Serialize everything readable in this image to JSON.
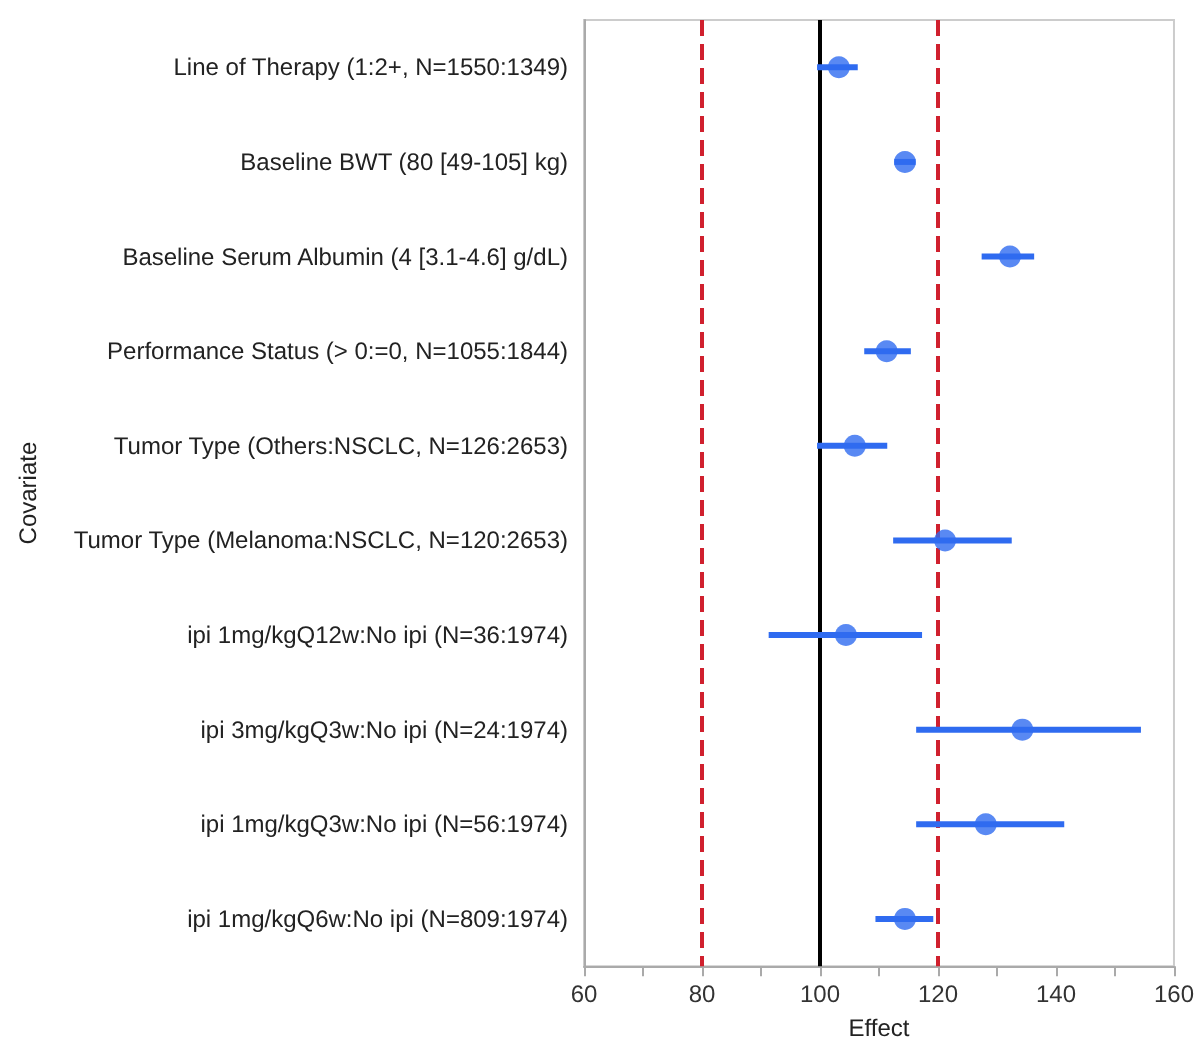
{
  "chart_data": {
    "type": "scatter",
    "orientation": "horizontal",
    "xlabel": "Effect",
    "ylabel": "Covariate",
    "categories": [
      "Line of Therapy (1:2+, N=1550:1349)",
      "Baseline BWT (80 [49-105] kg)",
      "Baseline Serum Albumin (4 [3.1-4.6] g/dL)",
      "Performance Status (> 0:=0, N=1055:1844)",
      "Tumor Type (Others:NSCLC, N=126:2653)",
      "Tumor Type (Melanoma:NSCLC, N=120:2653)",
      "ipi 1mg/kgQ12w:No ipi (N=36:1974)",
      "ipi 3mg/kgQ3w:No ipi (N=24:1974)",
      "ipi 1mg/kgQ3w:No ipi (N=56:1974)",
      "ipi 1mg/kgQ6w:No ipi (N=809:1974)"
    ],
    "values": [
      103.2,
      114.4,
      132.2,
      111.3,
      105.9,
      121.2,
      104.4,
      134.3,
      128.1,
      114.4
    ],
    "errors": [
      [
        99.5,
        106.4
      ],
      [
        112.6,
        116.2
      ],
      [
        127.4,
        136.3
      ],
      [
        107.5,
        115.4
      ],
      [
        99.5,
        111.4
      ],
      [
        112.4,
        132.5
      ],
      [
        91.3,
        117.3
      ],
      [
        116.3,
        154.4
      ],
      [
        116.3,
        141.4
      ],
      [
        109.4,
        119.2
      ]
    ],
    "color": "#2f6bf0",
    "marker": "circle",
    "grid": false,
    "xlim": [
      60,
      160
    ],
    "xticks": [
      60,
      {
        "value": 70,
        "label": null
      },
      80,
      {
        "value": 90,
        "label": null
      },
      100,
      {
        "value": 110,
        "label": null
      },
      120,
      {
        "value": 130,
        "label": null
      },
      140,
      {
        "value": 150,
        "label": null
      },
      160
    ],
    "ref_lines": [
      {
        "axis": "x",
        "value": 80,
        "color": "#d0202e",
        "line_style": "dashed"
      },
      {
        "axis": "x",
        "value": 100,
        "color": "#000000",
        "line_style": "solid"
      },
      {
        "axis": "x",
        "value": 120,
        "color": "#d0202e",
        "line_style": "dashed"
      }
    ]
  }
}
